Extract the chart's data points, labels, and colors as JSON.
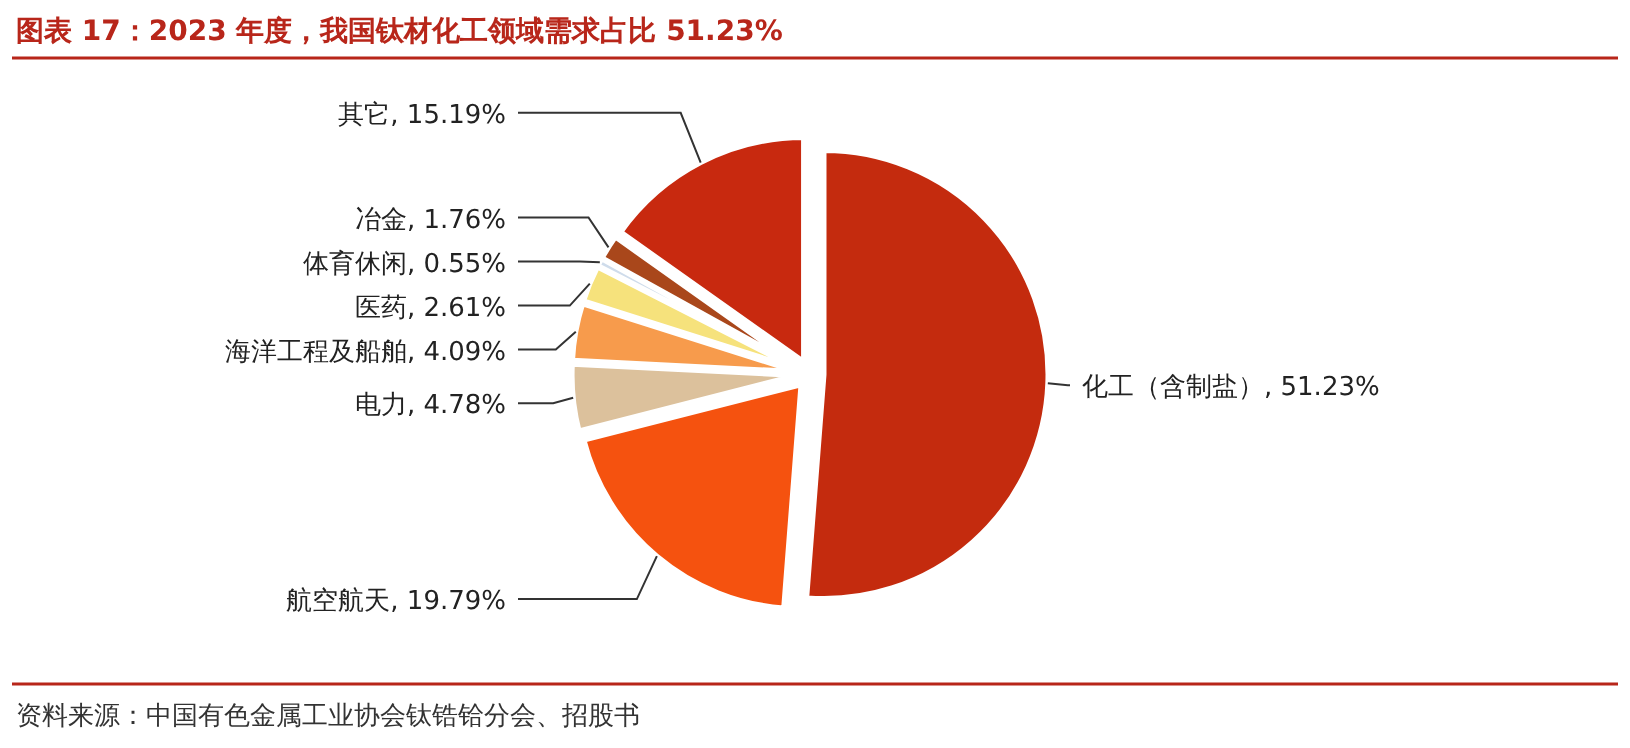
{
  "chart_data": {
    "type": "pie",
    "title": "图表 17：2023 年度，我国钛材化工领域需求占比 51.23%",
    "categories": [
      "化工（含制盐）",
      "航空航天",
      "电力",
      "海洋工程及船舶",
      "医药",
      "体育休闲",
      "冶金",
      "其它"
    ],
    "values": [
      51.23,
      19.79,
      4.78,
      4.09,
      2.61,
      0.55,
      1.76,
      15.19
    ],
    "colors": [
      "#c42b0e",
      "#f5520f",
      "#dcc19c",
      "#f79b4c",
      "#f6e27c",
      "#cfdceb",
      "#a9471b",
      "#c8290f"
    ],
    "value_labels": [
      ", 51.23%",
      ", 19.79%",
      ", 4.78%",
      ", 4.09%",
      ", 2.61%",
      ", 0.55%",
      ", 1.76%",
      ", 15.19%"
    ],
    "annotations": [
      "资料来源：中国有色金属工业协会钛锆铪分会、招股书"
    ]
  }
}
